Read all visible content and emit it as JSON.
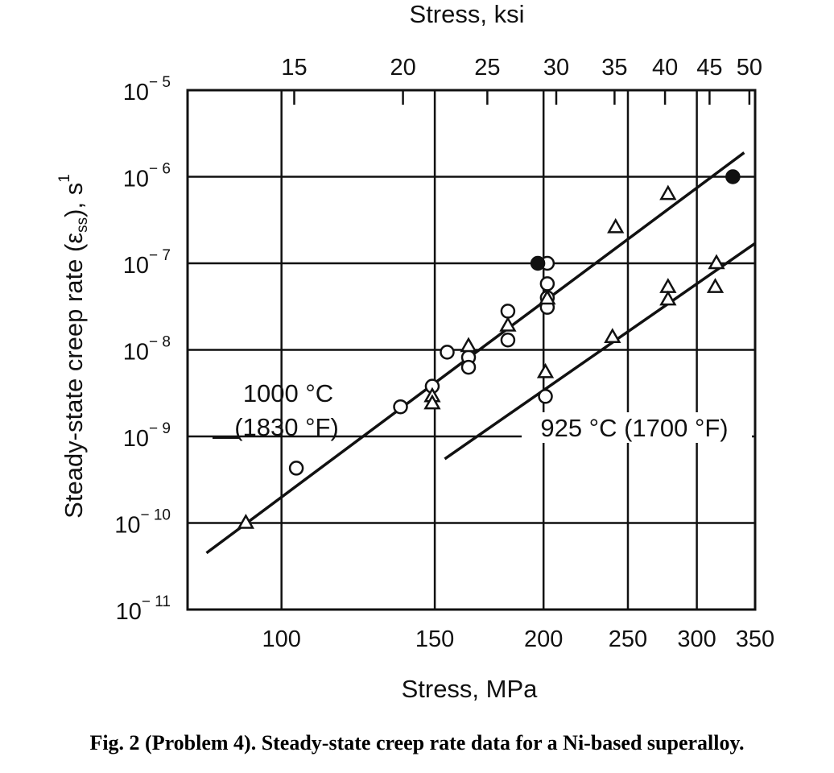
{
  "chart_data": {
    "type": "scatter",
    "x_scale": "log",
    "y_scale": "log",
    "xlim": [
      78,
      350
    ],
    "ylim": [
      1e-11,
      1e-05
    ],
    "grid": true,
    "top_axis": {
      "title": "Stress, ksi",
      "ticks": [
        15,
        20,
        25,
        30,
        35,
        40,
        45,
        50
      ]
    },
    "bottom_axis": {
      "title": "Stress, MPa",
      "ticks": [
        100,
        150,
        200,
        250,
        300,
        350
      ]
    },
    "y_axis": {
      "title": "Steady-state creep rate",
      "symbol_base": "ε",
      "symbol_subscript": "ss",
      "unit_base": "), s",
      "unit_exponent": "1",
      "tick_base": "10",
      "tick_exponents": [
        -5,
        -6,
        -7,
        -8,
        -9,
        -10,
        -11
      ]
    },
    "series": [
      {
        "label_line1": "1000 °C",
        "label_line2": "(1830 °F)",
        "fit_line": [
          [
            82,
            4.5e-11
          ],
          [
            340,
            1.9e-06
          ]
        ],
        "circles": [
          [
            104,
            4.3e-10
          ],
          [
            137,
            2.2e-09
          ],
          [
            149,
            3.8e-09
          ],
          [
            155,
            9.4e-09
          ],
          [
            164,
            8.2e-09
          ],
          [
            164,
            6.3e-09
          ],
          [
            182,
            2.8e-08
          ],
          [
            182,
            1.3e-08
          ],
          [
            202,
            1e-07
          ],
          [
            202,
            5.8e-08
          ],
          [
            202,
            4e-08
          ],
          [
            202,
            3.1e-08
          ]
        ],
        "filled_circles": [
          [
            197,
            1e-07
          ],
          [
            330,
            1e-06
          ]
        ],
        "triangles": [
          [
            91,
            1e-10
          ],
          [
            149,
            2.9e-09
          ],
          [
            149,
            2.4e-09
          ],
          [
            164,
            1.1e-08
          ],
          [
            182,
            1.9e-08
          ],
          [
            202,
            3.9e-08
          ],
          [
            242,
            2.6e-07
          ],
          [
            278,
            6.3e-07
          ]
        ]
      },
      {
        "label": "925 °C (1700 °F)",
        "fit_line": [
          [
            154,
            5.5e-10
          ],
          [
            350,
            1.7e-07
          ]
        ],
        "circles": [
          [
            201,
            2.9e-09
          ]
        ],
        "triangles": [
          [
            201,
            5.5e-09
          ],
          [
            240,
            1.4e-08
          ],
          [
            278,
            5.3e-08
          ],
          [
            278,
            3.8e-08
          ],
          [
            316,
            1e-07
          ],
          [
            315,
            5.3e-08
          ]
        ]
      }
    ]
  },
  "caption": "Fig. 2 (Problem 4).  Steady-state creep rate data for a Ni-based superalloy."
}
